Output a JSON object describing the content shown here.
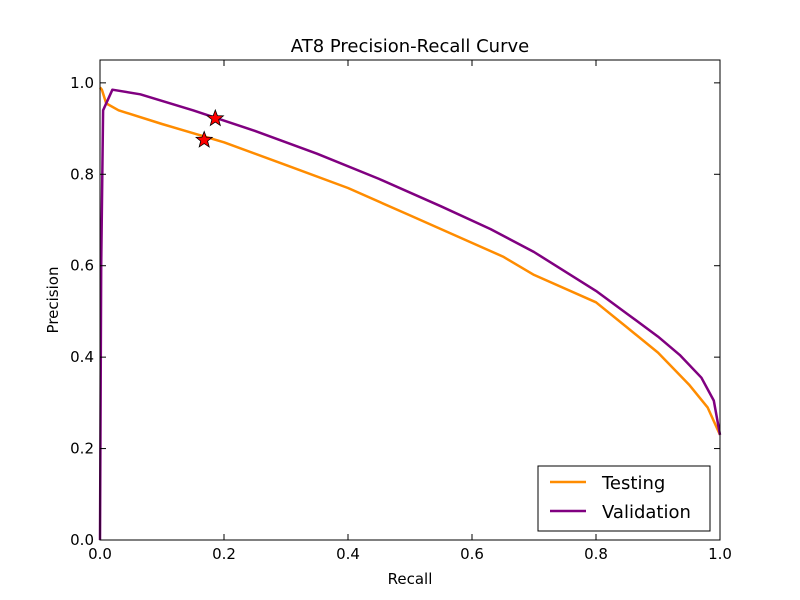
{
  "chart_data": {
    "type": "line",
    "title": "AT8 Precision-Recall Curve",
    "xlabel": "Recall",
    "ylabel": "Precision",
    "xlim": [
      0.0,
      1.0
    ],
    "ylim": [
      0.0,
      1.05
    ],
    "xticks": [
      "0.0",
      "0.2",
      "0.4",
      "0.6",
      "0.8",
      "1.0"
    ],
    "yticks": [
      "0.0",
      "0.2",
      "0.4",
      "0.6",
      "0.8",
      "1.0"
    ],
    "grid": false,
    "legend_position": "lower-right",
    "series": [
      {
        "name": "Testing",
        "color": "#ff8c00",
        "x": [
          0.0,
          0.003,
          0.01,
          0.03,
          0.1,
          0.2,
          0.3,
          0.4,
          0.5,
          0.6,
          0.65,
          0.7,
          0.8,
          0.85,
          0.9,
          0.95,
          0.98,
          1.0
        ],
        "y": [
          0.99,
          0.985,
          0.955,
          0.94,
          0.91,
          0.87,
          0.82,
          0.77,
          0.71,
          0.65,
          0.62,
          0.58,
          0.52,
          0.465,
          0.41,
          0.34,
          0.29,
          0.23
        ]
      },
      {
        "name": "Validation",
        "color": "#800080",
        "x": [
          0.0,
          0.002,
          0.005,
          0.02,
          0.065,
          0.15,
          0.25,
          0.35,
          0.45,
          0.55,
          0.63,
          0.7,
          0.8,
          0.85,
          0.9,
          0.935,
          0.97,
          0.99,
          1.0
        ],
        "y": [
          0.0,
          0.6,
          0.94,
          0.985,
          0.975,
          0.94,
          0.895,
          0.845,
          0.79,
          0.73,
          0.68,
          0.63,
          0.545,
          0.495,
          0.445,
          0.405,
          0.355,
          0.305,
          0.23
        ]
      }
    ],
    "markers": [
      {
        "series": "Testing",
        "x": 0.168,
        "y": 0.875,
        "shape": "star",
        "color": "#ff0000"
      },
      {
        "series": "Validation",
        "x": 0.186,
        "y": 0.922,
        "shape": "star",
        "color": "#ff0000"
      }
    ]
  }
}
